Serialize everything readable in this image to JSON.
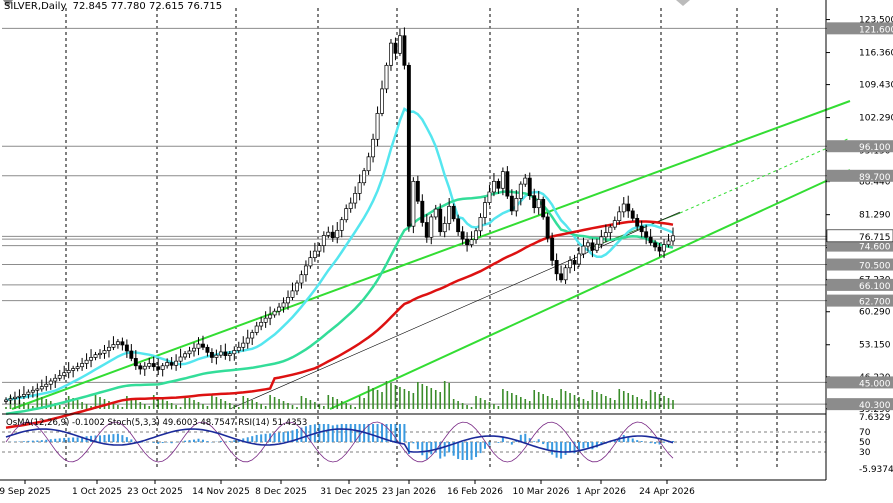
{
  "chart_data": {
    "type": "candlestick",
    "symbol": "SILVER",
    "timeframe": "Daily",
    "ohlc": {
      "open": "72.845",
      "high": "77.780",
      "low": "72.615",
      "close": "76.715"
    },
    "price_axis": {
      "ylim": [
        39.25,
        126.0
      ],
      "ticks": [
        "123.500",
        "116.360",
        "109.430",
        "102.290",
        "95.150",
        "88.440",
        "81.290",
        "74.150",
        "67.230",
        "60.290",
        "53.150",
        "46.220",
        "39.290"
      ]
    },
    "x_axis": {
      "labels": [
        "9 Sep 2025",
        "1 Oct 2025",
        "23 Oct 2025",
        "14 Nov 2025",
        "8 Dec 2025",
        "31 Dec 2025",
        "23 Jan 2026",
        "16 Feb 2026",
        "10 Mar 2026",
        "1 Apr 2026",
        "24 Apr 2026"
      ]
    },
    "levels": [
      {
        "value": 121.6,
        "label": "121.600"
      },
      {
        "value": 96.1,
        "label": "96.100"
      },
      {
        "value": 89.7,
        "label": "89.700"
      },
      {
        "value": 76.6,
        "label": "76.650"
      },
      {
        "value": 74.6,
        "label": "74.600"
      },
      {
        "value": 70.5,
        "label": "70.500"
      },
      {
        "value": 66.1,
        "label": "66.100"
      },
      {
        "value": 62.7,
        "label": "62.700"
      },
      {
        "value": 45.0,
        "label": "45.000"
      },
      {
        "value": 40.3,
        "label": "40.300"
      }
    ],
    "price_markers": [
      {
        "label": "76.715"
      },
      {
        "label": "76.600"
      }
    ],
    "closes": [
      41.2,
      41.5,
      41.8,
      42.0,
      42.4,
      42.9,
      43.3,
      43.6,
      44.1,
      44.6,
      45.3,
      45.9,
      46.5,
      47.1,
      47.6,
      48.0,
      48.4,
      49.1,
      49.8,
      50.4,
      51.0,
      51.3,
      51.9,
      52.6,
      53.2,
      53.8,
      53.1,
      51.8,
      50.2,
      48.6,
      47.9,
      48.5,
      49.1,
      48.4,
      47.8,
      48.6,
      49.3,
      48.7,
      49.6,
      50.5,
      51.2,
      51.8,
      52.4,
      53.3,
      52.6,
      51.5,
      50.4,
      50.9,
      51.6,
      50.8,
      51.2,
      51.9,
      52.6,
      53.5,
      54.6,
      55.8,
      57.2,
      58.0,
      58.9,
      59.6,
      60.4,
      61.3,
      62.2,
      63.4,
      64.8,
      66.5,
      68.3,
      70.2,
      72.0,
      73.4,
      74.6,
      76.8,
      77.5,
      76.3,
      77.9,
      80.2,
      82.6,
      83.8,
      85.9,
      88.2,
      90.8,
      93.8,
      97.6,
      103.2,
      108.5,
      113.6,
      118.4,
      116.2,
      120.0,
      113.6,
      78.8,
      88.5,
      84.2,
      79.6,
      76.4,
      80.8,
      82.5,
      77.6,
      79.4,
      83.1,
      80.4,
      77.6,
      76.0,
      74.8,
      75.9,
      77.8,
      80.7,
      83.9,
      86.2,
      88.5,
      87.0,
      90.6,
      85.3,
      82.1,
      84.8,
      87.9,
      89.2,
      85.4,
      82.8,
      84.6,
      80.8,
      76.2,
      71.4,
      68.5,
      67.2,
      69.8,
      71.4,
      70.6,
      72.8,
      74.5,
      75.2,
      73.6,
      74.9,
      76.5,
      77.4,
      78.6,
      80.0,
      81.9,
      83.6,
      82.1,
      80.5,
      78.8,
      77.6,
      76.4,
      75.2,
      74.3,
      73.4,
      74.8,
      75.6,
      76.715
    ],
    "ma_periods": [
      50,
      100,
      200
    ],
    "channel": {
      "style": "rising-parallel-lines"
    },
    "volume_bars": "bottom-of-price-panel",
    "oscillators": {
      "legend": "OsMA(12,26,9) -0.1002  Stoch(5,3,3) 49.6003 48.7547  RSI(14) 51.4353",
      "ticks": [
        "7.6329",
        "70",
        "50",
        "30",
        "-5.9374"
      ],
      "levels": [
        70,
        50,
        30
      ]
    }
  }
}
